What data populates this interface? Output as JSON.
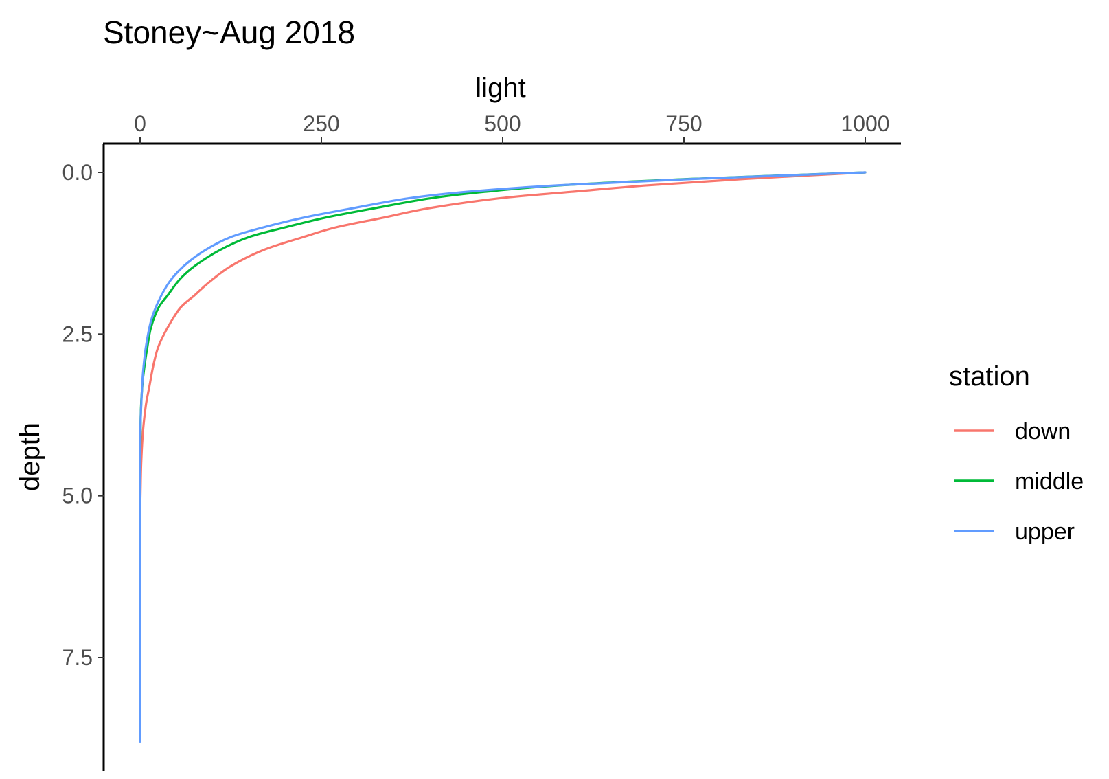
{
  "chart_data": {
    "type": "line",
    "title": "Stoney~Aug 2018",
    "xlabel": "light",
    "ylabel": "depth",
    "x_axis_position": "top",
    "y_axis_reversed": true,
    "xlim": [
      -100,
      1100
    ],
    "ylim": [
      0,
      9.2
    ],
    "x_ticks": [
      0,
      250,
      500,
      750,
      1000
    ],
    "x_tick_labels": [
      "0",
      "250",
      "500",
      "750",
      "1000"
    ],
    "y_ticks": [
      0,
      2.5,
      5,
      7.5
    ],
    "y_tick_labels": [
      "0.0",
      "2.5",
      "5.0",
      "7.5"
    ],
    "grid": false,
    "legend": {
      "title": "station",
      "position": "right"
    },
    "series": [
      {
        "name": "down",
        "color": "#F8766D",
        "x": [
          1000,
          835,
          700,
          595,
          495,
          400,
          335,
          270,
          225,
          170,
          125,
          95,
          75,
          55,
          38,
          25,
          18,
          13,
          8,
          4,
          1.5,
          0.5,
          0
        ],
        "y": [
          0,
          0.1,
          0.2,
          0.3,
          0.4,
          0.55,
          0.7,
          0.85,
          1.0,
          1.2,
          1.45,
          1.7,
          1.9,
          2.1,
          2.4,
          2.7,
          3.0,
          3.3,
          3.6,
          4.0,
          4.5,
          5.0,
          5.2
        ]
      },
      {
        "name": "middle",
        "color": "#00BA38",
        "x": [
          1000,
          760,
          580,
          475,
          400,
          325,
          255,
          200,
          150,
          110,
          75,
          55,
          38,
          25,
          15,
          10,
          6,
          3,
          1,
          0.5,
          0
        ],
        "y": [
          0,
          0.1,
          0.2,
          0.3,
          0.4,
          0.55,
          0.7,
          0.85,
          1.0,
          1.2,
          1.45,
          1.65,
          1.9,
          2.1,
          2.4,
          2.7,
          3.0,
          3.3,
          3.7,
          4.2,
          4.5
        ]
      },
      {
        "name": "upper",
        "color": "#619CFF",
        "x": [
          1000,
          765,
          575,
          450,
          370,
          295,
          225,
          170,
          125,
          90,
          60,
          40,
          25,
          15,
          8,
          4,
          2,
          0.5,
          0.2,
          0
        ],
        "y": [
          0,
          0.1,
          0.2,
          0.3,
          0.4,
          0.55,
          0.7,
          0.85,
          1.0,
          1.2,
          1.45,
          1.7,
          2.0,
          2.3,
          2.7,
          3.1,
          3.5,
          4.0,
          5.0,
          8.8
        ]
      }
    ]
  }
}
